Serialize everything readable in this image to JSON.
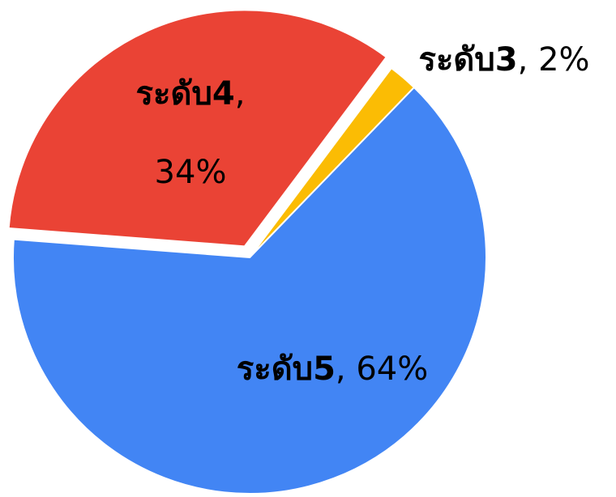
{
  "chart_data": {
    "type": "pie",
    "categories": [
      "ระดับ5",
      "ระดับ4",
      "ระดับ3"
    ],
    "values": [
      64,
      34,
      2
    ],
    "value_labels": [
      "64%",
      "34%",
      "2%"
    ],
    "label_separator": ",",
    "colors": [
      "#4285f4",
      "#ea4335",
      "#fbbc04"
    ]
  }
}
